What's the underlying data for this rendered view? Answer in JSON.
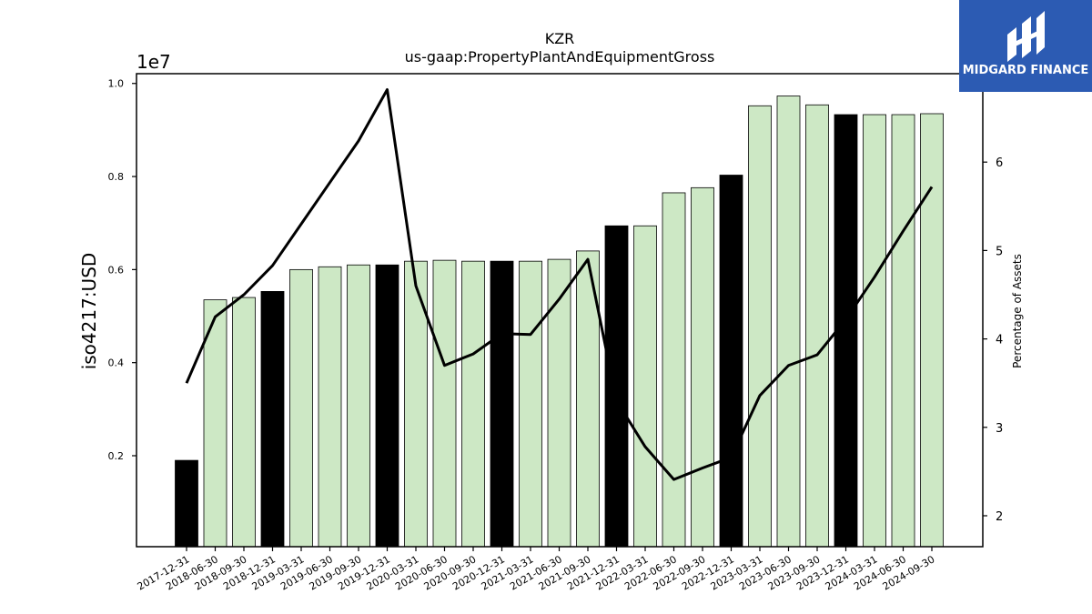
{
  "chart_data": {
    "type": "bar",
    "title": "KZR",
    "subtitle": "us-gaap:PropertyPlantAndEquipmentGross",
    "ylabel": "iso4217:USD",
    "y_offset_label": "1e7",
    "y2label": "Percentage of Assets",
    "categories": [
      "2017-12-31",
      "2018-06-30",
      "2018-09-30",
      "2018-12-31",
      "2019-03-31",
      "2019-06-30",
      "2019-09-30",
      "2019-12-31",
      "2020-03-31",
      "2020-06-30",
      "2020-09-30",
      "2020-12-31",
      "2021-03-31",
      "2021-06-30",
      "2021-09-30",
      "2021-12-31",
      "2022-03-31",
      "2022-06-30",
      "2022-09-30",
      "2022-12-31",
      "2023-03-31",
      "2023-06-30",
      "2023-09-30",
      "2023-12-31",
      "2024-03-31",
      "2024-06-30",
      "2024-09-30"
    ],
    "values": [
      1900000,
      5350000,
      5400000,
      5530000,
      6000000,
      6060000,
      6100000,
      6100000,
      6180000,
      6200000,
      6180000,
      6180000,
      6180000,
      6220000,
      6400000,
      6940000,
      6940000,
      7650000,
      7760000,
      8030000,
      9520000,
      9730000,
      9540000,
      9330000,
      9330000,
      9330000,
      9350000
    ],
    "annual": [
      true,
      false,
      false,
      true,
      false,
      false,
      false,
      true,
      false,
      false,
      false,
      true,
      false,
      false,
      false,
      true,
      false,
      false,
      false,
      true,
      false,
      false,
      false,
      true,
      false,
      false,
      false
    ],
    "line_series": {
      "name": "Percentage of Assets",
      "values": [
        3.5,
        4.25,
        4.5,
        4.83,
        5.3,
        5.77,
        6.24,
        6.82,
        4.6,
        3.7,
        3.83,
        4.06,
        4.05,
        4.45,
        4.9,
        3.3,
        2.78,
        2.41,
        2.54,
        2.66,
        3.36,
        3.7,
        3.82,
        4.22,
        4.7,
        5.22,
        5.72
      ]
    },
    "ylim": [
      45000,
      10210000
    ],
    "y_ticks": [
      0.2,
      0.4,
      0.6,
      0.8,
      1.0
    ],
    "y2lim": [
      1.65,
      7.0
    ],
    "y2_ticks": [
      2,
      3,
      4,
      5,
      6
    ],
    "colors": {
      "annual_bar": "#000000",
      "quarter_bar": "#cde8c5",
      "line": "#000000"
    },
    "grid": false
  },
  "logo": {
    "text": "MIDGARD FINANCE",
    "background": "#2c5bb3"
  }
}
